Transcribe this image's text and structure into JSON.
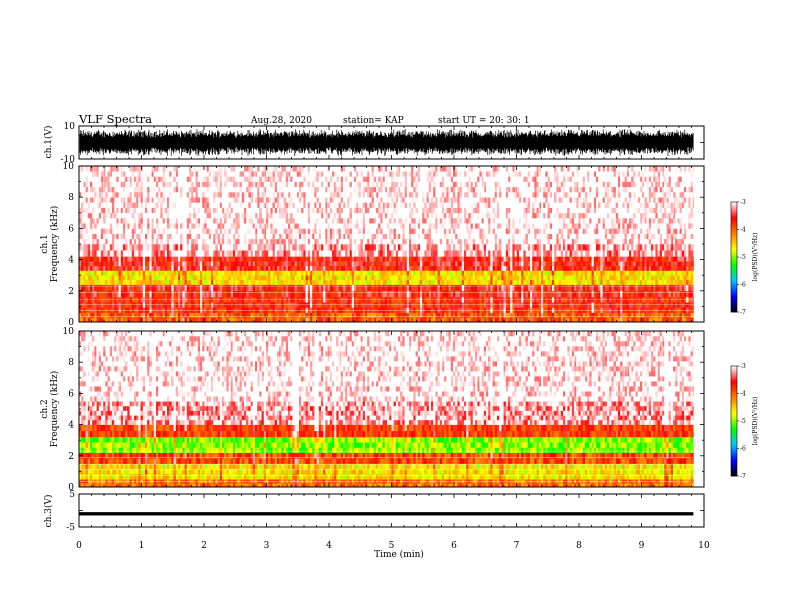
{
  "header": {
    "title": "VLF Spectra",
    "date": "Aug.28, 2020",
    "station": "station= KAP",
    "start": "start  UT =   20: 30: 1"
  },
  "chart_data": [
    {
      "type": "line",
      "name": "waveform-ch1",
      "ylabel": "ch.1(V)",
      "ylim": [
        -10,
        10
      ],
      "yticks": [
        "10",
        "-10"
      ],
      "xlim": [
        0,
        10
      ],
      "x_end": 9.83,
      "amplitude_fraction": 0.85
    },
    {
      "type": "heatmap",
      "name": "spectrogram-ch1",
      "ylabel": "ch.1\nFrequency  (kHz)",
      "ylim": [
        0,
        10
      ],
      "yticks": [
        "0",
        "2",
        "4",
        "6",
        "8",
        "10"
      ],
      "xlim": [
        0,
        10
      ],
      "x_end": 9.83,
      "bands_khz": [
        {
          "from": 0.0,
          "to": 0.6,
          "level": -4.0
        },
        {
          "from": 0.6,
          "to": 1.6,
          "level": -3.7
        },
        {
          "from": 1.6,
          "to": 2.4,
          "level": -3.6
        },
        {
          "from": 2.4,
          "to": 3.3,
          "level": -4.6
        },
        {
          "from": 3.3,
          "to": 4.2,
          "level": -3.6
        },
        {
          "from": 4.2,
          "to": 5.0,
          "level": -3.2
        },
        {
          "from": 5.0,
          "to": 10.0,
          "level": -3.0
        }
      ]
    },
    {
      "type": "heatmap",
      "name": "spectrogram-ch2",
      "ylabel": "ch.2\nFrequency  (kHz)",
      "ylim": [
        0,
        10
      ],
      "yticks": [
        "0",
        "2",
        "4",
        "6",
        "8",
        "10"
      ],
      "xlim": [
        0,
        10
      ],
      "x_end": 9.83,
      "bands_khz": [
        {
          "from": 0.0,
          "to": 0.5,
          "level": -4.1
        },
        {
          "from": 0.5,
          "to": 1.5,
          "level": -4.6
        },
        {
          "from": 1.5,
          "to": 2.2,
          "level": -3.9
        },
        {
          "from": 2.2,
          "to": 3.2,
          "level": -5.0
        },
        {
          "from": 3.2,
          "to": 4.0,
          "level": -3.8
        },
        {
          "from": 4.0,
          "to": 5.5,
          "level": -3.2
        },
        {
          "from": 5.5,
          "to": 10.0,
          "level": -3.0
        }
      ]
    },
    {
      "type": "line",
      "name": "waveform-ch3",
      "ylabel": "ch.3(V)",
      "ylim": [
        -5,
        5
      ],
      "yticks": [
        "5",
        "-5"
      ],
      "xlim": [
        0,
        10
      ],
      "x_end": 9.83,
      "band": [
        -1.5,
        -0.5
      ]
    }
  ],
  "colorbar": {
    "label": "log(PSD)(V²/Hz)",
    "range": [
      -7,
      -3
    ],
    "ticks": [
      "-3",
      "-4",
      "-5",
      "-6",
      "-7"
    ],
    "colors": [
      "#000000",
      "#0000ff",
      "#00c8ff",
      "#00ff00",
      "#ffff00",
      "#ff8000",
      "#ff0000",
      "#ffffff"
    ]
  },
  "x_axis": {
    "label": "Time  (min)",
    "ticks": [
      "0",
      "1",
      "2",
      "3",
      "4",
      "5",
      "6",
      "7",
      "8",
      "9",
      "10"
    ]
  }
}
